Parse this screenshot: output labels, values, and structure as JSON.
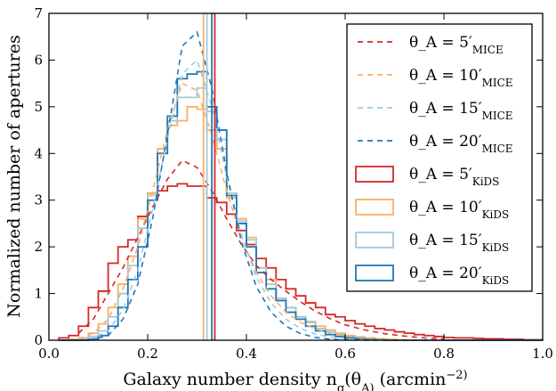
{
  "chart_data": {
    "type": "line",
    "xlabel": "Galaxy number density n_g(θ_A) (arcmin^−2)",
    "ylabel": "Normalized number of apertures",
    "xlim": [
      0.0,
      1.0
    ],
    "ylim": [
      0,
      7
    ],
    "xticks": [
      "0.0",
      "0.2",
      "0.4",
      "0.6",
      "0.8",
      "1.0"
    ],
    "yticks": [
      "0",
      "1",
      "2",
      "3",
      "4",
      "5",
      "6",
      "7"
    ],
    "grid": false,
    "legend_position": "top-right",
    "mice_x": [
      0.06,
      0.09,
      0.12,
      0.15,
      0.18,
      0.21,
      0.24,
      0.27,
      0.3,
      0.33,
      0.36,
      0.39,
      0.42,
      0.45,
      0.48,
      0.51,
      0.54,
      0.57,
      0.6,
      0.64,
      0.68,
      0.72,
      0.76,
      0.8
    ],
    "kids_edges": [
      0.02,
      0.04,
      0.06,
      0.08,
      0.1,
      0.12,
      0.14,
      0.16,
      0.18,
      0.2,
      0.22,
      0.24,
      0.26,
      0.28,
      0.3,
      0.32,
      0.34,
      0.36,
      0.38,
      0.4,
      0.42,
      0.44,
      0.46,
      0.48,
      0.5,
      0.52,
      0.54,
      0.56,
      0.58,
      0.6,
      0.62,
      0.64,
      0.66,
      0.68,
      0.7,
      0.72,
      0.74,
      0.76,
      0.78,
      0.8,
      0.82,
      0.84,
      0.86,
      0.88,
      0.9,
      0.92,
      0.94,
      0.96,
      0.98,
      1.0
    ],
    "series": [
      {
        "label_base": "θ_A = 5′",
        "label_sub": "MICE",
        "style": "dashed",
        "color": "#d62728",
        "y": [
          0.15,
          0.45,
          1.0,
          1.55,
          2.2,
          2.85,
          3.45,
          3.85,
          3.7,
          3.2,
          2.6,
          2.05,
          1.6,
          1.3,
          1.05,
          0.82,
          0.62,
          0.46,
          0.33,
          0.22,
          0.14,
          0.09,
          0.05,
          0.03
        ]
      },
      {
        "label_base": "θ_A = 10′",
        "label_sub": "MICE",
        "style": "dashed",
        "color": "#fdae61",
        "y": [
          0.03,
          0.15,
          0.45,
          1.1,
          2.0,
          3.2,
          4.5,
          5.5,
          5.35,
          4.4,
          3.2,
          2.2,
          1.45,
          0.95,
          0.6,
          0.38,
          0.24,
          0.15,
          0.09,
          0.05,
          0.03,
          0.01,
          0.0,
          0.0
        ]
      },
      {
        "label_base": "θ_A = 15′",
        "label_sub": "MICE",
        "style": "dashed",
        "color": "#9ecae1",
        "y": [
          0.0,
          0.05,
          0.2,
          0.65,
          1.5,
          2.8,
          4.3,
          5.7,
          6.0,
          5.0,
          3.5,
          2.25,
          1.35,
          0.8,
          0.45,
          0.25,
          0.13,
          0.07,
          0.03,
          0.01,
          0.0,
          0.0,
          0.0,
          0.0
        ]
      },
      {
        "label_base": "θ_A = 20′",
        "label_sub": "MICE",
        "style": "dashed",
        "color": "#1f78b4",
        "y": [
          0.0,
          0.02,
          0.1,
          0.45,
          1.2,
          2.6,
          4.4,
          6.3,
          6.6,
          5.4,
          3.6,
          2.1,
          1.15,
          0.6,
          0.3,
          0.14,
          0.06,
          0.02,
          0.01,
          0.0,
          0.0,
          0.0,
          0.0,
          0.0
        ]
      },
      {
        "label_base": "θ_A = 5′",
        "label_sub": "KiDS",
        "style": "step",
        "color": "#d62728",
        "y": [
          0.05,
          0.1,
          0.3,
          0.7,
          1.05,
          1.65,
          2.0,
          2.15,
          2.65,
          3.15,
          3.2,
          3.3,
          3.35,
          3.3,
          3.3,
          3.05,
          2.95,
          2.7,
          2.35,
          2.05,
          1.75,
          1.55,
          1.3,
          1.1,
          0.95,
          0.8,
          0.7,
          0.55,
          0.5,
          0.42,
          0.35,
          0.3,
          0.25,
          0.22,
          0.18,
          0.15,
          0.12,
          0.1,
          0.08,
          0.06,
          0.05,
          0.05,
          0.04,
          0.03,
          0.03,
          0.02,
          0.02,
          0.01,
          0.01
        ]
      },
      {
        "label_base": "θ_A = 10′",
        "label_sub": "KiDS",
        "style": "step",
        "color": "#fdae61",
        "y": [
          0.0,
          0.02,
          0.05,
          0.15,
          0.35,
          0.7,
          1.2,
          1.8,
          2.6,
          3.15,
          4.1,
          4.6,
          4.7,
          5.0,
          4.95,
          4.5,
          4.1,
          3.05,
          2.6,
          2.2,
          1.55,
          1.3,
          0.9,
          0.7,
          0.5,
          0.4,
          0.3,
          0.22,
          0.15,
          0.1,
          0.07,
          0.05,
          0.03,
          0.02,
          0.01,
          0.0,
          0.0,
          0.0,
          0.0,
          0.0,
          0.0,
          0.0,
          0.0,
          0.0,
          0.0,
          0.0,
          0.0,
          0.0,
          0.0
        ]
      },
      {
        "label_base": "θ_A = 15′",
        "label_sub": "KiDS",
        "style": "step",
        "color": "#9ecae1",
        "y": [
          0.0,
          0.0,
          0.02,
          0.08,
          0.2,
          0.5,
          1.0,
          1.6,
          2.4,
          3.1,
          4.0,
          4.7,
          5.2,
          5.2,
          5.4,
          4.9,
          4.3,
          3.15,
          2.55,
          2.15,
          1.55,
          1.2,
          0.9,
          0.7,
          0.5,
          0.38,
          0.25,
          0.18,
          0.12,
          0.08,
          0.05,
          0.03,
          0.02,
          0.01,
          0.0,
          0.0,
          0.0,
          0.0,
          0.0,
          0.0,
          0.0,
          0.0,
          0.0,
          0.0,
          0.0,
          0.0,
          0.0,
          0.0,
          0.0
        ]
      },
      {
        "label_base": "θ_A = 20′",
        "label_sub": "KiDS",
        "style": "step",
        "color": "#1f78b4",
        "y": [
          0.0,
          0.0,
          0.0,
          0.03,
          0.1,
          0.3,
          0.7,
          1.3,
          2.0,
          3.0,
          4.0,
          4.8,
          5.6,
          5.7,
          5.75,
          5.0,
          4.5,
          3.1,
          2.5,
          2.0,
          1.45,
          1.1,
          0.85,
          0.6,
          0.45,
          0.3,
          0.2,
          0.12,
          0.08,
          0.05,
          0.03,
          0.02,
          0.01,
          0.0,
          0.0,
          0.0,
          0.0,
          0.0,
          0.0,
          0.0,
          0.0,
          0.0,
          0.0,
          0.0,
          0.0,
          0.0,
          0.0,
          0.0,
          0.0
        ]
      }
    ],
    "vertical_lines": [
      {
        "x": 0.313,
        "color": "#fdae61"
      },
      {
        "x": 0.32,
        "color": "#9ecae1"
      },
      {
        "x": 0.33,
        "color": "#1f78b4"
      },
      {
        "x": 0.336,
        "color": "#d62728"
      }
    ]
  }
}
